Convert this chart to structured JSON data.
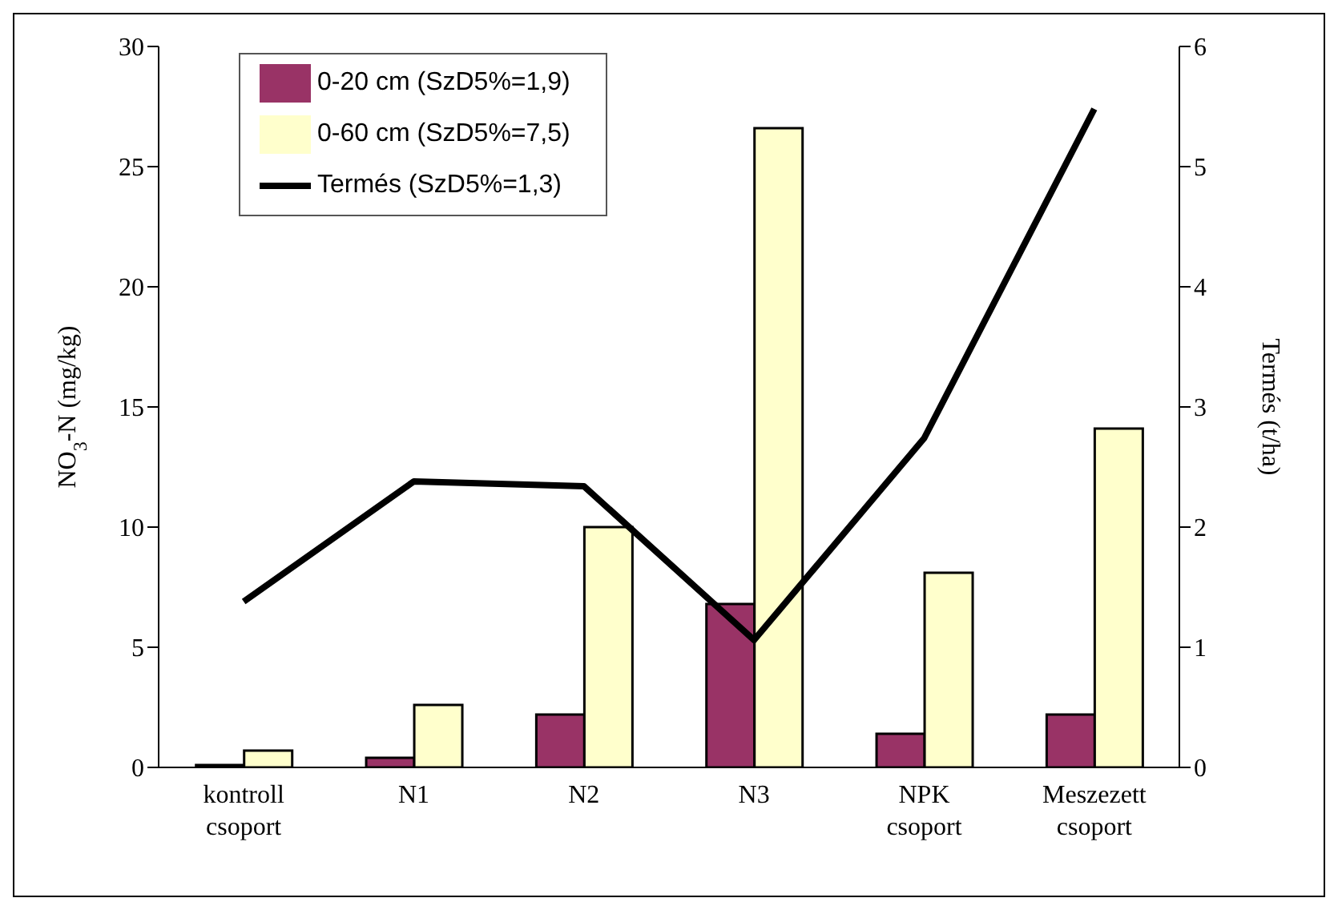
{
  "chart_data": {
    "type": "bar",
    "categories": [
      "kontroll csoport",
      "N1",
      "N2",
      "N3",
      "NPK csoport",
      "Meszezett csoport"
    ],
    "series": [
      {
        "name": "0-20 cm (SzD5%=1,9)",
        "color": "#993366",
        "values": [
          0.1,
          0.4,
          2.2,
          6.8,
          1.4,
          2.2
        ]
      },
      {
        "name": "0-60 cm (SzD5%=7,5)",
        "color": "#ffffcc",
        "values": [
          0.7,
          2.6,
          10.0,
          26.6,
          8.1,
          14.1
        ]
      },
      {
        "name": "Termés (SzD5%=1,3)",
        "type": "line",
        "axis": "y2",
        "color": "#000000",
        "values": [
          1.38,
          2.38,
          2.34,
          1.06,
          2.74,
          5.48
        ]
      }
    ],
    "ylabel": "NO$_{3}$-N (mg/kg)",
    "y2label": "Termés (t/ha)",
    "ylim": [
      0,
      30
    ],
    "yticks": [
      0,
      5,
      10,
      15,
      20,
      25,
      30
    ],
    "y2lim": [
      0,
      6
    ],
    "y2ticks": [
      0,
      1,
      2,
      3,
      4,
      5,
      6
    ],
    "grid": false,
    "legend": "top left",
    "marker": "none"
  }
}
